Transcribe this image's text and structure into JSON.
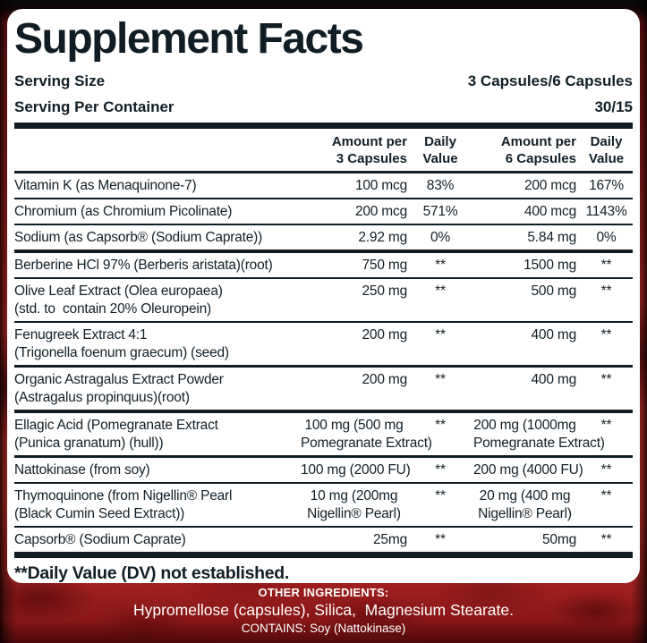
{
  "panel": {
    "title": "Supplement Facts",
    "serving_size_label": "Serving Size",
    "serving_size_value": "3 Capsules/6 Capsules",
    "servings_per_container_label": "Serving Per Container",
    "servings_per_container_value": "30/15",
    "footnote": "**Daily Value (DV) not established."
  },
  "columns": {
    "amt3_line1": "Amount per",
    "amt3_line2": "3 Capsules",
    "dv3_line1": "Daily",
    "dv3_line2": "Value",
    "amt6_line1": "Amount per",
    "amt6_line2": "6 Capsules",
    "dv6_line1": "Daily",
    "dv6_line2": "Value"
  },
  "rows": [
    {
      "name1": "Vitamin K (as Menaquinone-7)",
      "amt3": "100 mcg",
      "dv3": "83%",
      "amt6": "200 mcg",
      "dv6": "167%",
      "sep": "thin"
    },
    {
      "name1": "Chromium (as Chromium Picolinate)",
      "amt3": "200 mcg",
      "dv3": "571%",
      "amt6": "400 mcg",
      "dv6": "1143%",
      "sep": "thin"
    },
    {
      "name1": "Sodium (as Capsorb® (Sodium Caprate))",
      "amt3": "2.92 mg",
      "dv3": "0%",
      "amt6": "5.84 mg",
      "dv6": "0%",
      "sep": "thick"
    },
    {
      "name1": "Berberine HCl 97% (Berberis aristata)(root)",
      "amt3": "750 mg",
      "dv3": "**",
      "amt6": "1500 mg",
      "dv6": "**",
      "sep": "thin"
    },
    {
      "name1": "Olive Leaf Extract (Olea europaea)",
      "name2": "(std. to  contain 20% Oleuropein)",
      "amt3": "250 mg",
      "dv3": "**",
      "amt6": "500 mg",
      "dv6": "**",
      "sep": "thin"
    },
    {
      "name1": "Fenugreek Extract 4:1",
      "name2": "(Trigonella foenum graecum) (seed)",
      "amt3": "200 mg",
      "dv3": "**",
      "amt6": "400 mg",
      "dv6": "**",
      "sep": "mid"
    },
    {
      "name1": "Organic Astragalus Extract Powder",
      "name2": "(Astragalus propinquus)(root)",
      "amt3": "200 mg",
      "dv3": "**",
      "amt6": "400 mg",
      "dv6": "**",
      "sep": "thick"
    },
    {
      "name1": "Ellagic Acid (Pomegranate Extract",
      "name2": "(Punica granatum) (hull))",
      "amt3": "100 mg (500 mg",
      "amt3b": "Pomegranate Extract)",
      "dv3": "**",
      "amt6": "200 mg (1000mg",
      "amt6b": "Pomegranate Extract)",
      "dv6": "**",
      "sep": "mid"
    },
    {
      "name1": "Nattokinase (from soy)",
      "amt3": "100 mg (2000 FU)",
      "dv3": "**",
      "amt6": "200 mg (4000 FU)",
      "dv6": "**",
      "sep": "thin"
    },
    {
      "name1": "Thymoquinone (from Nigellin® Pearl",
      "name2": "(Black Cumin Seed Extract))",
      "amt3": "10 mg (200mg",
      "amt3b": "Nigellin® Pearl)",
      "dv3": "**",
      "amt6": "20 mg (400 mg",
      "amt6b": "Nigellin® Pearl)",
      "dv6": "**",
      "sep": "thin"
    },
    {
      "name1": "Capsorb® (Sodium Caprate)",
      "amt3": "25mg",
      "dv3": "**",
      "amt6": "50mg",
      "dv6": "**",
      "sep": "bar"
    }
  ],
  "other_ingredients": {
    "heading": "OTHER INGREDIENTS:",
    "line1": "Hypromellose (capsules), Silica,  Magnesium Stearate.",
    "line2": "CONTAINS: Soy (Nattokinase)"
  },
  "colors": {
    "ink": "#101d25",
    "panel_background": "#ffffff",
    "band_red": "#c62a2c",
    "band_dark_red": "#7e1416",
    "band_text": "#ffffff"
  }
}
